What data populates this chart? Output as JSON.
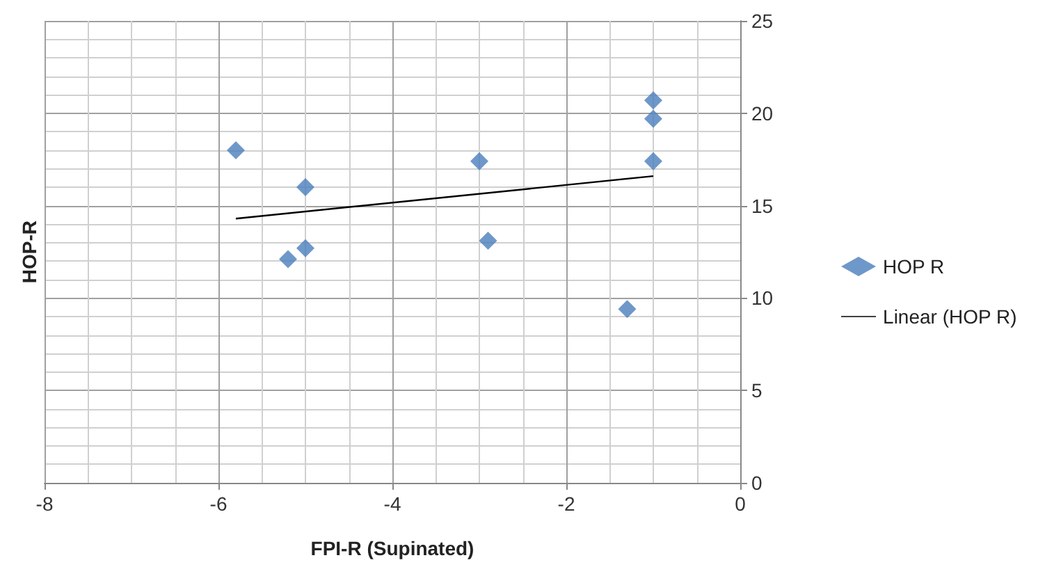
{
  "chart_data": {
    "type": "scatter",
    "xlabel": "FPI-R (Supinated)",
    "ylabel": "HOP-R",
    "series": [
      {
        "name": "HOP R",
        "color": "#4a7ebb",
        "marker": "diamond",
        "x": [
          -5.8,
          -5,
          -5.2,
          -5,
          -3,
          -2.9,
          -1,
          -1,
          -1,
          -1.3
        ],
        "values": [
          18,
          16,
          12.1,
          12.7,
          17.4,
          13.1,
          20.7,
          19.7,
          17.4,
          9.4
        ]
      },
      {
        "name": "Linear (HOP R)",
        "type": "line",
        "color": "#000000",
        "marker": "none",
        "x": [
          -5.8,
          -1
        ],
        "values": [
          14.3,
          16.6
        ]
      }
    ],
    "xlim": [
      -8,
      0
    ],
    "xticks": [
      -8,
      -6,
      -4,
      -2,
      0
    ],
    "ylim": [
      0,
      25
    ],
    "yticks": [
      0,
      5,
      10,
      15,
      20,
      25
    ],
    "grid": true,
    "legend": "right"
  }
}
